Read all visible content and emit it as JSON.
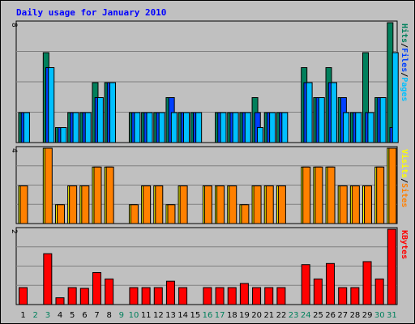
{
  "title": "Daily usage for January 2010",
  "colors": {
    "background": "#c0c0c0",
    "title": "#0000ff",
    "hits": "#00805c",
    "files": "#0040ff",
    "pages": "#00c0ff",
    "visits": "#ffff00",
    "sites": "#ff8000",
    "kbytes": "#ff0000",
    "weekend": "#00805c",
    "weekday": "#000000",
    "grid": "#808080"
  },
  "chart_data": {
    "type": "bar",
    "categories": [
      "1",
      "2",
      "3",
      "4",
      "5",
      "6",
      "7",
      "8",
      "9",
      "10",
      "11",
      "12",
      "13",
      "14",
      "15",
      "16",
      "17",
      "18",
      "19",
      "20",
      "21",
      "22",
      "23",
      "24",
      "25",
      "26",
      "27",
      "28",
      "29",
      "30",
      "31"
    ],
    "weekend_days": [
      2,
      3,
      9,
      10,
      16,
      17,
      23,
      24,
      30,
      31
    ],
    "panels": [
      {
        "id": "hits-files-pages",
        "ymax_label": "8",
        "ymax": 8,
        "legend": [
          {
            "name": "Pages",
            "color": "#00c0ff"
          },
          {
            "name": "Files",
            "color": "#0040ff"
          },
          {
            "name": "Hits",
            "color": "#00805c"
          }
        ],
        "legend_separator": "/",
        "series": [
          {
            "name": "Hits",
            "color": "#00805c",
            "values": [
              2,
              0,
              6,
              1,
              2,
              2,
              4,
              4,
              0,
              2,
              2,
              2,
              3,
              2,
              2,
              0,
              2,
              2,
              2,
              3,
              2,
              2,
              0,
              5,
              3,
              5,
              3,
              2,
              6,
              3,
              8
            ]
          },
          {
            "name": "Files",
            "color": "#0040ff",
            "values": [
              2,
              0,
              5,
              1,
              2,
              2,
              3,
              4,
              0,
              2,
              2,
              2,
              3,
              2,
              2,
              0,
              2,
              2,
              2,
              2,
              2,
              2,
              0,
              4,
              3,
              4,
              3,
              2,
              2,
              3,
              1
            ]
          },
          {
            "name": "Pages",
            "color": "#00c0ff",
            "values": [
              2,
              0,
              5,
              1,
              2,
              2,
              3,
              4,
              0,
              2,
              2,
              2,
              2,
              2,
              2,
              0,
              2,
              2,
              2,
              1,
              2,
              2,
              0,
              4,
              3,
              4,
              2,
              2,
              2,
              3,
              6
            ]
          }
        ]
      },
      {
        "id": "visits-sites",
        "ymax_label": "4",
        "ymax": 4,
        "legend": [
          {
            "name": "Sites",
            "color": "#ff8000"
          },
          {
            "name": "Visits",
            "color": "#ffff00"
          }
        ],
        "legend_separator": "/",
        "series": [
          {
            "name": "Visits",
            "color": "#ffff00",
            "values": [
              2,
              0,
              4,
              1,
              2,
              2,
              3,
              3,
              0,
              1,
              2,
              2,
              1,
              2,
              0,
              2,
              2,
              2,
              1,
              2,
              2,
              2,
              0,
              3,
              3,
              3,
              2,
              2,
              2,
              3,
              4
            ]
          },
          {
            "name": "Sites",
            "color": "#ff8000",
            "values": [
              2,
              0,
              4,
              1,
              2,
              2,
              3,
              3,
              0,
              1,
              2,
              2,
              1,
              2,
              0,
              2,
              2,
              2,
              1,
              2,
              2,
              2,
              0,
              3,
              3,
              3,
              2,
              2,
              2,
              3,
              4
            ]
          }
        ]
      },
      {
        "id": "kbytes",
        "ymax_label": "2",
        "ymax": 2,
        "legend": [
          {
            "name": "KBytes",
            "color": "#ff0000"
          }
        ],
        "legend_separator": "",
        "series": [
          {
            "name": "KBytes",
            "color": "#ff0000",
            "values": [
              0.45,
              0,
              1.35,
              0.18,
              0.45,
              0.43,
              0.85,
              0.68,
              0,
              0.45,
              0.45,
              0.45,
              0.62,
              0.45,
              0,
              0.45,
              0.45,
              0.45,
              0.56,
              0.45,
              0.45,
              0.45,
              0,
              1.06,
              0.68,
              1.09,
              0.45,
              0.45,
              1.14,
              0.68,
              2.0
            ]
          }
        ]
      }
    ]
  }
}
